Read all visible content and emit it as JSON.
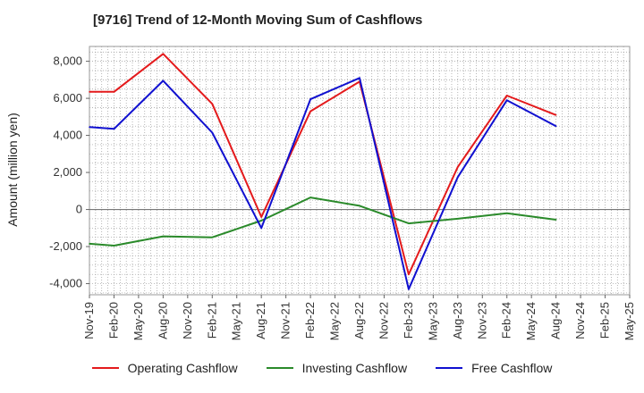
{
  "chart_data": {
    "type": "line",
    "title": "[9716]  Trend of 12-Month Moving Sum of Cashflows",
    "ylabel": "Amount (million yen)",
    "xlabel": "",
    "categories": [
      "Nov-19",
      "Feb-20",
      "May-20",
      "Aug-20",
      "Nov-20",
      "Feb-21",
      "May-21",
      "Aug-21",
      "Nov-21",
      "Feb-22",
      "May-22",
      "Aug-22",
      "Nov-22",
      "Feb-23",
      "May-23",
      "Aug-23",
      "Nov-23",
      "Feb-24",
      "May-24",
      "Aug-24",
      "Nov-24",
      "Feb-25",
      "May-25"
    ],
    "ylim": [
      -4600,
      8800
    ],
    "yticks": [
      -4000,
      -2000,
      0,
      2000,
      4000,
      6000,
      8000
    ],
    "ytick_labels": [
      "-4,000",
      "-2,000",
      "0",
      "2,000",
      "4,000",
      "6,000",
      "8,000"
    ],
    "grid": true,
    "legend_position": "bottom",
    "series": [
      {
        "name": "Operating Cashflow",
        "color": "#e41a1c",
        "values": [
          6350,
          6350,
          null,
          8400,
          null,
          5700,
          null,
          -400,
          null,
          5300,
          null,
          6900,
          null,
          -3500,
          null,
          2300,
          null,
          6150,
          null,
          5100,
          null,
          null,
          null
        ]
      },
      {
        "name": "Investing Cashflow",
        "color": "#2a8a2a",
        "values": [
          -1850,
          -1950,
          null,
          -1450,
          null,
          -1500,
          null,
          -600,
          null,
          650,
          null,
          200,
          null,
          -750,
          null,
          -500,
          null,
          -200,
          null,
          -550,
          null,
          null,
          null
        ]
      },
      {
        "name": "Free Cashflow",
        "color": "#1010d0",
        "values": [
          4450,
          4350,
          null,
          6950,
          null,
          4150,
          null,
          -1000,
          null,
          5950,
          null,
          7100,
          null,
          -4300,
          null,
          1750,
          null,
          5900,
          null,
          4500,
          null,
          null,
          null
        ]
      }
    ]
  }
}
